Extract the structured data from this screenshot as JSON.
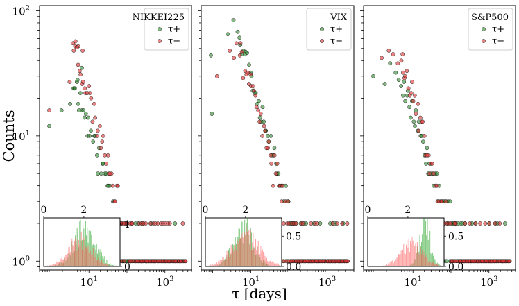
{
  "figure": {
    "ylabel": "Counts",
    "xlabel": "τ [days]",
    "colors": {
      "plus": "#2e8b2e",
      "minus": "#e03030",
      "inset_plus": "#45b045",
      "inset_minus": "#ff5555",
      "overlap": "#b87a3a"
    }
  },
  "chart_data": [
    {
      "type": "scatter",
      "title": "NIKKEI225",
      "xscale": "log",
      "yscale": "log",
      "xlim": [
        0.5,
        5000
      ],
      "ylim": [
        0.85,
        110
      ],
      "xticks": [
        {
          "v": 10,
          "label": "10",
          "exp": "1"
        },
        {
          "v": 1000,
          "label": "10",
          "exp": "3"
        }
      ],
      "yticks": [
        {
          "v": 1,
          "label": "10",
          "exp": "0"
        },
        {
          "v": 10,
          "label": "10",
          "exp": "1"
        },
        {
          "v": 100,
          "label": "10",
          "exp": "2"
        }
      ],
      "legend": [
        "τ+",
        "τ−"
      ],
      "legend_position": "top-right",
      "series": [
        {
          "name": "τ+",
          "peak": [
            4,
            28
          ],
          "k": 0.95,
          "tmax": 3200,
          "seed": 11,
          "low": [
            [
              0.9,
              12
            ],
            [
              1.9,
              16
            ],
            [
              3.2,
              18
            ],
            [
              4.1,
              24
            ],
            [
              5.0,
              28
            ],
            [
              6.5,
              35
            ]
          ]
        },
        {
          "name": "τ−",
          "peak": [
            4,
            55
          ],
          "k": 1.05,
          "tmax": 3500,
          "seed": 23,
          "low": [
            [
              0.9,
              16
            ],
            [
              3.1,
              27
            ],
            [
              3.8,
              55
            ],
            [
              4.4,
              57
            ],
            [
              5.2,
              52
            ],
            [
              6.8,
              48
            ]
          ]
        }
      ],
      "inset": {
        "xlim": [
          0,
          3.8
        ],
        "ylim": [
          0,
          1.15
        ],
        "xticks": [
          "0",
          "2"
        ],
        "yticks": [
          "0",
          "1"
        ],
        "plus_peak": 2.05,
        "plus_width": 0.55,
        "plus_max": 1.0,
        "minus_peak": 1.8,
        "minus_width": 0.6,
        "minus_max": 0.7
      }
    },
    {
      "type": "scatter",
      "title": "VIX",
      "xscale": "log",
      "yscale": "log",
      "xlim": [
        0.5,
        5000
      ],
      "ylim": [
        0.85,
        110
      ],
      "xticks": [
        {
          "v": 10,
          "label": "10",
          "exp": "1"
        },
        {
          "v": 1000,
          "label": "10",
          "exp": "3"
        }
      ],
      "yticks": [],
      "legend": [
        "τ+",
        "τ−"
      ],
      "legend_position": "top-right",
      "series": [
        {
          "name": "τ+",
          "peak": [
            5,
            70
          ],
          "k": 1.1,
          "tmax": 3200,
          "seed": 37,
          "low": [
            [
              0.9,
              44
            ],
            [
              0.95,
              15
            ],
            [
              2.5,
              65
            ],
            [
              3.5,
              84
            ],
            [
              4.5,
              68
            ]
          ]
        },
        {
          "name": "τ−",
          "peak": [
            5,
            50
          ],
          "k": 1.05,
          "tmax": 3500,
          "seed": 41,
          "low": [
            [
              1.3,
              30
            ],
            [
              2.8,
              48
            ],
            [
              3.6,
              42
            ],
            [
              4.2,
              55
            ]
          ]
        }
      ],
      "inset": {
        "xlim": [
          0,
          3.8
        ],
        "ylim": [
          0,
          0.8
        ],
        "xticks": [
          "0",
          "2"
        ],
        "yticks": [
          "0.0",
          "0.5"
        ],
        "plus_peak": 1.9,
        "plus_width": 0.5,
        "plus_max": 0.72,
        "minus_peak": 2.0,
        "minus_width": 0.7,
        "minus_max": 0.55
      }
    },
    {
      "type": "scatter",
      "title": "S&P500",
      "xscale": "log",
      "yscale": "log",
      "xlim": [
        0.5,
        5000
      ],
      "ylim": [
        0.85,
        110
      ],
      "xticks": [
        {
          "v": 10,
          "label": "10",
          "exp": "1"
        },
        {
          "v": 1000,
          "label": "10",
          "exp": "3"
        }
      ],
      "yticks": [],
      "legend": [
        "τ+",
        "τ−"
      ],
      "legend_position": "top-right",
      "series": [
        {
          "name": "τ+",
          "peak": [
            5,
            28
          ],
          "k": 0.85,
          "tmax": 3200,
          "seed": 53,
          "low": [
            [
              0.9,
              30
            ],
            [
              1.8,
              26
            ],
            [
              2.5,
              38
            ],
            [
              3.5,
              32
            ],
            [
              4.2,
              28
            ]
          ]
        },
        {
          "name": "τ−",
          "peak": [
            5,
            45
          ],
          "k": 1.1,
          "tmax": 3500,
          "seed": 67,
          "low": [
            [
              1.5,
              42
            ],
            [
              2.3,
              48
            ],
            [
              3.0,
              45
            ],
            [
              4.0,
              38
            ],
            [
              5.5,
              32
            ]
          ]
        }
      ],
      "inset": {
        "xlim": [
          0,
          3.8
        ],
        "ylim": [
          0,
          0.8
        ],
        "xticks": [
          "0",
          "2"
        ],
        "yticks": [
          "0.0",
          "0.5"
        ],
        "plus_peak": 2.85,
        "plus_width": 0.28,
        "plus_max": 0.78,
        "minus_peak": 2.2,
        "minus_width": 0.55,
        "minus_max": 0.42
      }
    }
  ]
}
